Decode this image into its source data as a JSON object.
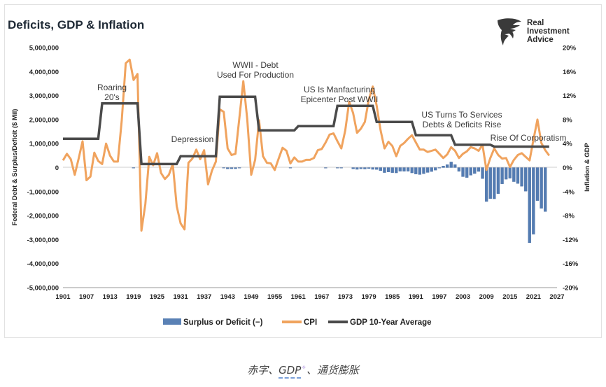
{
  "chart_data": {
    "type": "bar+line",
    "title": "Deficits, GDP & Inflation",
    "ylabel_left": "Federal Debt & Surplus/Deficit ($ Mil)",
    "ylabel_right": "Inflation & GDP",
    "ylim_left": [
      -5000000,
      5000000
    ],
    "ylim_right": [
      -20,
      20
    ],
    "yticks_left": [
      "5,000,000",
      "4,000,000",
      "3,000,000",
      "2,000,000",
      "1,000,000",
      "0",
      "-1,000,000",
      "-2,000,000",
      "-3,000,000",
      "-4,000,000",
      "-5,000,000"
    ],
    "yticks_right": [
      "20%",
      "16%",
      "12%",
      "8%",
      "4%",
      "0%",
      "-4%",
      "-8%",
      "-12%",
      "-16%",
      "-20%"
    ],
    "xticks": [
      "1901",
      "1907",
      "1913",
      "1919",
      "1925",
      "1931",
      "1937",
      "1943",
      "1949",
      "1955",
      "1961",
      "1967",
      "1973",
      "1979",
      "1985",
      "1991",
      "1997",
      "2003",
      "2009",
      "2015",
      "2021",
      "2027"
    ],
    "x_range": [
      1901,
      2027
    ],
    "legend": [
      "Surplus or Deficit (−)",
      "CPI",
      "GDP 10-Year Average"
    ],
    "annotations": [
      {
        "lines": [
          "Roaring",
          "20's"
        ]
      },
      {
        "lines": [
          "Depression"
        ]
      },
      {
        "lines": [
          "WWII - Debt",
          "Used For Production"
        ]
      },
      {
        "lines": [
          "US Is Manfacturing",
          "Epicenter Post WWII"
        ]
      },
      {
        "lines": [
          "US Turns To Services",
          "Debts & Deficits Rise"
        ]
      },
      {
        "lines": [
          "Rise Of Corporatism"
        ]
      }
    ],
    "series": [
      {
        "name": "Surplus or Deficit (−)",
        "kind": "bar",
        "color": "#3d6ba8",
        "x": [
          1919,
          1942,
          1943,
          1944,
          1945,
          1946,
          1959,
          1968,
          1971,
          1972,
          1975,
          1976,
          1977,
          1978,
          1979,
          1980,
          1981,
          1982,
          1983,
          1984,
          1985,
          1986,
          1987,
          1988,
          1989,
          1990,
          1991,
          1992,
          1993,
          1994,
          1995,
          1996,
          1997,
          1998,
          1999,
          2000,
          2001,
          2002,
          2003,
          2004,
          2005,
          2006,
          2007,
          2008,
          2009,
          2010,
          2011,
          2012,
          2013,
          2014,
          2015,
          2016,
          2017,
          2018,
          2019,
          2020,
          2021,
          2022,
          2023,
          2024
        ],
        "values": [
          -13000,
          -20000,
          -55000,
          -47000,
          -47000,
          -15000,
          -13000,
          -25000,
          -23000,
          -23000,
          -53000,
          -74000,
          -54000,
          -59000,
          -41000,
          -74000,
          -79000,
          -128000,
          -208000,
          -185000,
          -212000,
          -221000,
          -150000,
          -155000,
          -153000,
          -221000,
          -269000,
          -290000,
          -255000,
          -203000,
          -164000,
          -107000,
          -22000,
          69000,
          126000,
          236000,
          128000,
          -158000,
          -378000,
          -413000,
          -318000,
          -248000,
          -161000,
          -459000,
          -1413000,
          -1294000,
          -1300000,
          -1087000,
          -680000,
          -485000,
          -442000,
          -585000,
          -665000,
          -779000,
          -984000,
          -3132000,
          -2775000,
          -1376000,
          -1695000,
          -1833000
        ]
      },
      {
        "name": "CPI",
        "kind": "line",
        "color": "#f0a35e",
        "x": [
          1901,
          1902,
          1903,
          1904,
          1905,
          1906,
          1907,
          1908,
          1909,
          1910,
          1911,
          1912,
          1913,
          1914,
          1915,
          1916,
          1917,
          1918,
          1919,
          1920,
          1921,
          1922,
          1923,
          1924,
          1925,
          1926,
          1927,
          1928,
          1929,
          1930,
          1931,
          1932,
          1933,
          1934,
          1935,
          1936,
          1937,
          1938,
          1939,
          1940,
          1941,
          1942,
          1943,
          1944,
          1945,
          1946,
          1947,
          1948,
          1949,
          1950,
          1951,
          1952,
          1953,
          1954,
          1955,
          1956,
          1957,
          1958,
          1959,
          1960,
          1961,
          1962,
          1963,
          1964,
          1965,
          1966,
          1967,
          1968,
          1969,
          1970,
          1971,
          1972,
          1973,
          1974,
          1975,
          1976,
          1977,
          1978,
          1979,
          1980,
          1981,
          1982,
          1983,
          1984,
          1985,
          1986,
          1987,
          1988,
          1989,
          1990,
          1991,
          1992,
          1993,
          1994,
          1995,
          1996,
          1997,
          1998,
          1999,
          2000,
          2001,
          2002,
          2003,
          2004,
          2005,
          2006,
          2007,
          2008,
          2009,
          2010,
          2011,
          2012,
          2013,
          2014,
          2015,
          2016,
          2017,
          2018,
          2019,
          2020,
          2021,
          2022,
          2023,
          2024,
          2025
        ],
        "values": [
          1.2,
          2.3,
          1.4,
          -1.2,
          1.5,
          4.4,
          -2.1,
          -1.5,
          2.5,
          1.1,
          0.6,
          4.0,
          2.0,
          1.0,
          1.0,
          7.9,
          17.4,
          18.0,
          14.6,
          15.6,
          -10.5,
          -6.1,
          1.8,
          0.4,
          2.4,
          -0.9,
          -1.9,
          -1.2,
          0.6,
          -6.4,
          -9.3,
          -10.3,
          0.8,
          1.5,
          3.0,
          1.4,
          2.9,
          -2.8,
          -0.5,
          1.0,
          9.7,
          9.3,
          3.2,
          2.1,
          2.3,
          8.3,
          14.4,
          8.1,
          -1.2,
          1.3,
          7.9,
          1.9,
          0.8,
          0.7,
          -0.4,
          1.5,
          3.3,
          2.8,
          0.7,
          1.7,
          1.0,
          1.0,
          1.3,
          1.3,
          1.6,
          2.9,
          3.1,
          4.2,
          5.5,
          5.7,
          4.4,
          3.2,
          6.2,
          11.0,
          9.1,
          5.8,
          6.5,
          7.6,
          11.3,
          13.5,
          10.3,
          6.2,
          3.2,
          4.3,
          3.6,
          1.9,
          3.6,
          4.1,
          4.8,
          5.4,
          4.2,
          3.0,
          3.0,
          2.6,
          2.8,
          3.0,
          2.3,
          1.6,
          2.2,
          3.4,
          2.8,
          1.6,
          2.3,
          2.7,
          3.4,
          3.2,
          2.8,
          3.8,
          -0.4,
          1.6,
          3.2,
          2.1,
          1.5,
          1.6,
          0.1,
          1.3,
          2.1,
          2.4,
          1.8,
          1.2,
          4.7,
          8.0,
          4.1,
          2.9,
          2.0
        ]
      },
      {
        "name": "GDP 10-Year Average",
        "kind": "step",
        "color": "#4a4a4a",
        "x": [
          1901,
          1910,
          1911,
          1920,
          1921,
          1930,
          1931,
          1940,
          1941,
          1950,
          1951,
          1960,
          1961,
          1970,
          1971,
          1980,
          1981,
          1990,
          1991,
          2000,
          2001,
          2010,
          2011,
          2020,
          2021,
          2025
        ],
        "values": [
          4.8,
          4.8,
          10.7,
          10.7,
          0.6,
          0.6,
          1.9,
          1.9,
          11.8,
          11.8,
          6.2,
          6.2,
          6.9,
          6.9,
          10.3,
          10.3,
          7.6,
          7.6,
          5.4,
          5.4,
          3.8,
          3.8,
          3.5,
          3.5,
          3.5,
          3.5
        ]
      }
    ]
  },
  "brand": {
    "line1": "Real",
    "line2": "Investment",
    "line3": "Advice"
  },
  "caption": {
    "before": "赤字、",
    "link": "GDP",
    "spark": "✧",
    "after": "、通货膨胀"
  }
}
